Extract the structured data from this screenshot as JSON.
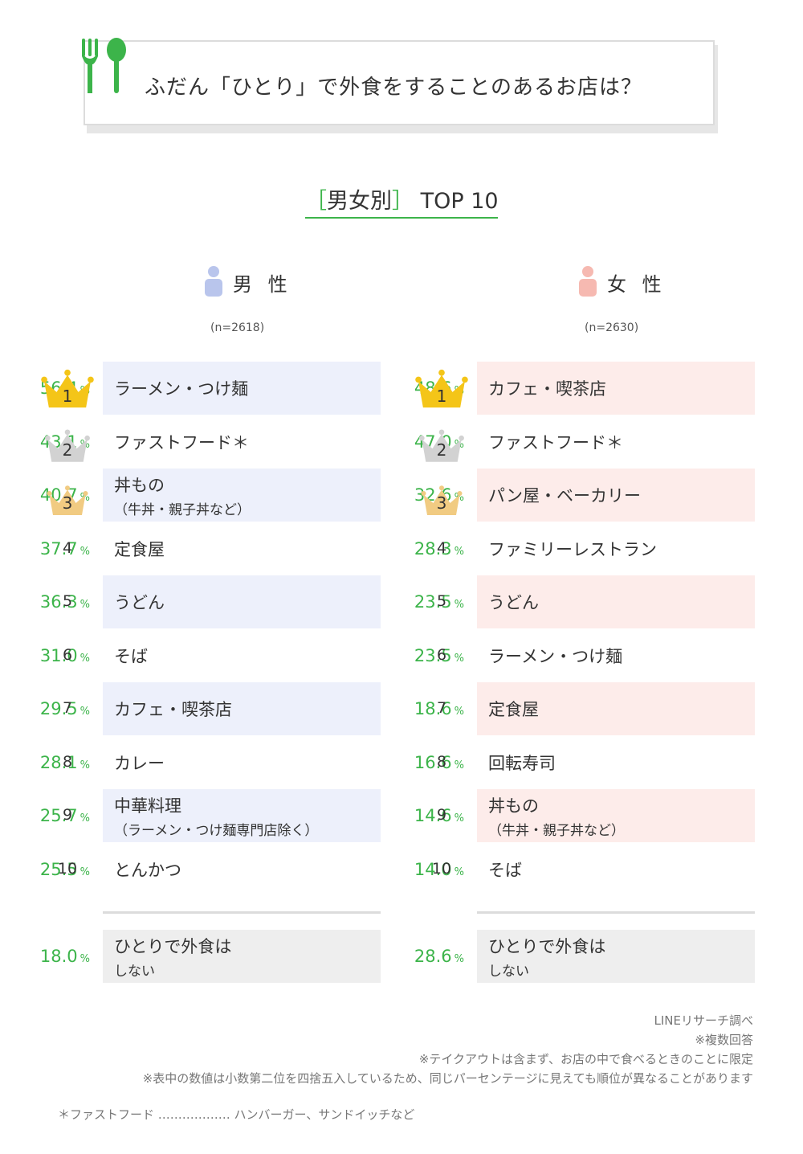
{
  "header": {
    "title": "ふだん「ひとり」で外食をすることのあるお店は？",
    "subtitle_bracket_open": "［",
    "subtitle_main": "男女別",
    "subtitle_bracket_close": "］",
    "subtitle_tail": " TOP 10"
  },
  "colors": {
    "accent": "#3cb44a",
    "male_fill": "#edf0fb",
    "female_fill": "#fdecea",
    "male_icon": "#b9c5ec",
    "female_icon": "#f6b9b1",
    "gold": "#f4c518",
    "silver": "#d2d2d2",
    "bronze": "#f1cb82",
    "no_eat_fill": "#eeeeee"
  },
  "chart_data": {
    "type": "table",
    "title": "ふだん「ひとり」で外食をすることのあるお店は？",
    "subtitle": "［男女別］TOP 10",
    "unit": "%",
    "groups": [
      {
        "name": "男 性",
        "n": "(n=2618)",
        "rows": [
          {
            "rank": "1",
            "name": "ラーメン・つけ麺",
            "sub": "",
            "value": "56.4"
          },
          {
            "rank": "2",
            "name": "ファストフード＊",
            "sub": "",
            "value": "43.1"
          },
          {
            "rank": "3",
            "name": "丼もの",
            "sub": "（牛丼・親子丼など）",
            "value": "40.7"
          },
          {
            "rank": "4",
            "name": "定食屋",
            "sub": "",
            "value": "37.7"
          },
          {
            "rank": "5",
            "name": "うどん",
            "sub": "",
            "value": "36.3"
          },
          {
            "rank": "6",
            "name": "そば",
            "sub": "",
            "value": "31.0"
          },
          {
            "rank": "7",
            "name": "カフェ・喫茶店",
            "sub": "",
            "value": "29.5"
          },
          {
            "rank": "8",
            "name": "カレー",
            "sub": "",
            "value": "28.1"
          },
          {
            "rank": "9",
            "name": "中華料理",
            "sub": "（ラーメン・つけ麺専門店除く）",
            "value": "25.7"
          },
          {
            "rank": "10",
            "name": "とんかつ",
            "sub": "",
            "value": "25.5"
          }
        ],
        "no_eat": {
          "name": "ひとりで外食は",
          "sub": "しない",
          "value": "18.0"
        }
      },
      {
        "name": "女 性",
        "n": "(n=2630)",
        "rows": [
          {
            "rank": "1",
            "name": "カフェ・喫茶店",
            "sub": "",
            "value": "48.6"
          },
          {
            "rank": "2",
            "name": "ファストフード＊",
            "sub": "",
            "value": "47.0"
          },
          {
            "rank": "3",
            "name": "パン屋・ベーカリー",
            "sub": "",
            "value": "32.6"
          },
          {
            "rank": "4",
            "name": "ファミリーレストラン",
            "sub": "",
            "value": "28.3"
          },
          {
            "rank": "5",
            "name": "うどん",
            "sub": "",
            "value": "23.5"
          },
          {
            "rank": "6",
            "name": "ラーメン・つけ麺",
            "sub": "",
            "value": "23.5"
          },
          {
            "rank": "7",
            "name": "定食屋",
            "sub": "",
            "value": "18.6"
          },
          {
            "rank": "8",
            "name": "回転寿司",
            "sub": "",
            "value": "16.6"
          },
          {
            "rank": "9",
            "name": "丼もの",
            "sub": "（牛丼・親子丼など）",
            "value": "14.6"
          },
          {
            "rank": "10",
            "name": "そば",
            "sub": "",
            "value": "14.0"
          }
        ],
        "no_eat": {
          "name": "ひとりで外食は",
          "sub": "しない",
          "value": "28.6"
        }
      }
    ]
  },
  "notes": [
    "LINEリサーチ調べ",
    "※複数回答",
    "※テイクアウトは含まず、お店の中で食べるときのことに限定",
    "※表中の数値は小数第二位を四捨五入しているため、同じパーセンテージに見えても順位が異なることがあります"
  ],
  "footnote": "＊ファストフード ……………… ハンバーガー、サンドイッチなど"
}
